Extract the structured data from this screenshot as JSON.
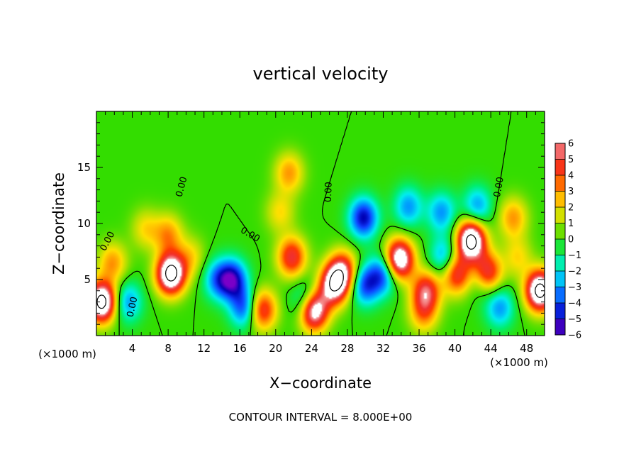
{
  "chart_data": {
    "type": "heatmap",
    "title": "vertical velocity",
    "xlabel": "X−coordinate",
    "ylabel": "Z−coordinate",
    "x_unit_left": "(×1000 m)",
    "x_unit_right": "(×1000 m)",
    "xlim": [
      0,
      50
    ],
    "ylim": [
      0,
      20
    ],
    "x_ticks": [
      4,
      8,
      12,
      16,
      20,
      24,
      28,
      32,
      36,
      40,
      44,
      48
    ],
    "y_ticks": [
      5,
      10,
      15
    ],
    "colorbar": {
      "range": [
        -6,
        6
      ],
      "tick_labels": [
        "6",
        "5",
        "4",
        "3",
        "2",
        "1",
        "0",
        "−1",
        "−2",
        "−3",
        "−4",
        "−5",
        "−6"
      ],
      "over_color": "#ffffff"
    },
    "contour_label": "0.00",
    "contour_interval_text": "CONTOUR INTERVAL = 8.000E+00",
    "features": [
      {
        "x": 0.6,
        "z": 3.0,
        "w": 9
      },
      {
        "x": 1.8,
        "z": 6.5,
        "w": 3
      },
      {
        "x": 8.3,
        "z": 5.5,
        "w": 9
      },
      {
        "x": 8.0,
        "z": 9.0,
        "w": 3
      },
      {
        "x": 5.5,
        "z": 9.5,
        "w": 2
      },
      {
        "x": 10.5,
        "z": 7.0,
        "w": 2
      },
      {
        "x": 3.5,
        "z": 3.0,
        "w": -3
      },
      {
        "x": 13.5,
        "z": 5.0,
        "w": -3
      },
      {
        "x": 15.2,
        "z": 5.0,
        "w": -5
      },
      {
        "x": 16.5,
        "z": 2.5,
        "w": -4
      },
      {
        "x": 18.5,
        "z": 2.3,
        "w": 5
      },
      {
        "x": 21.8,
        "z": 7.0,
        "w": 5
      },
      {
        "x": 20.5,
        "z": 11.0,
        "w": 2
      },
      {
        "x": 21.5,
        "z": 14.5,
        "w": 3
      },
      {
        "x": 23.5,
        "z": 3.0,
        "w": -4
      },
      {
        "x": 24.2,
        "z": 2.3,
        "w": 9
      },
      {
        "x": 26.5,
        "z": 4.5,
        "w": 7
      },
      {
        "x": 27.5,
        "z": 5.8,
        "w": 5
      },
      {
        "x": 29.8,
        "z": 10.5,
        "w": -5
      },
      {
        "x": 30.0,
        "z": 4.5,
        "w": -4
      },
      {
        "x": 32.0,
        "z": 5.5,
        "w": -4
      },
      {
        "x": 33.8,
        "z": 6.8,
        "w": 8
      },
      {
        "x": 34.8,
        "z": 11.5,
        "w": -3
      },
      {
        "x": 36.8,
        "z": 4.0,
        "w": 5
      },
      {
        "x": 36.5,
        "z": 2.0,
        "w": 3
      },
      {
        "x": 38.5,
        "z": 11.0,
        "w": -3
      },
      {
        "x": 38.8,
        "z": 7.0,
        "w": -3
      },
      {
        "x": 40.2,
        "z": 5.5,
        "w": 5
      },
      {
        "x": 41.8,
        "z": 8.5,
        "w": 9
      },
      {
        "x": 42.5,
        "z": 11.5,
        "w": -3
      },
      {
        "x": 43.2,
        "z": 5.2,
        "w": -5
      },
      {
        "x": 43.5,
        "z": 5.5,
        "w": 9
      },
      {
        "x": 45.0,
        "z": 2.5,
        "w": -3
      },
      {
        "x": 46.5,
        "z": 10.5,
        "w": 3
      },
      {
        "x": 49.5,
        "z": 4.0,
        "w": 9
      },
      {
        "x": 47.0,
        "z": 7.0,
        "w": 2
      }
    ]
  }
}
